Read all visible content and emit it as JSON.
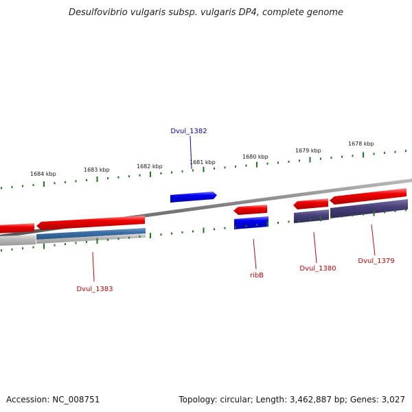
{
  "title": "Desulfovibrio vulgaris subsp. vulgaris DP4, complete genome",
  "footer": {
    "accession": "Accession: NC_008751",
    "summary": "Topology: circular; Length: 3,462,887 bp; Genes: 3,027"
  },
  "ruler": {
    "labels": [
      "1684 kbp",
      "1683 kbp",
      "1682 kbp",
      "1681 kbp",
      "1680 kbp",
      "1679 kbp",
      "1678 kbp"
    ]
  },
  "genes": [
    {
      "name": "Dvul_1382",
      "color": "#0000cc"
    },
    {
      "name": "ribB",
      "color": "#cc0000"
    },
    {
      "name": "Dvul_1380",
      "color": "#cc0000"
    },
    {
      "name": "Dvul_1379",
      "color": "#cc0000"
    },
    {
      "name": "Dvul_1383",
      "color": "#cc0000"
    }
  ],
  "colors": {
    "forward_gene": "#0000ee",
    "reverse_gene": "#ee0000",
    "backbone": "#888888",
    "tick": "#1a7a1a",
    "cog_blue": "#3a6ea5",
    "cog_purple": "#48407a",
    "cog_grey": "#b8b8b8"
  }
}
